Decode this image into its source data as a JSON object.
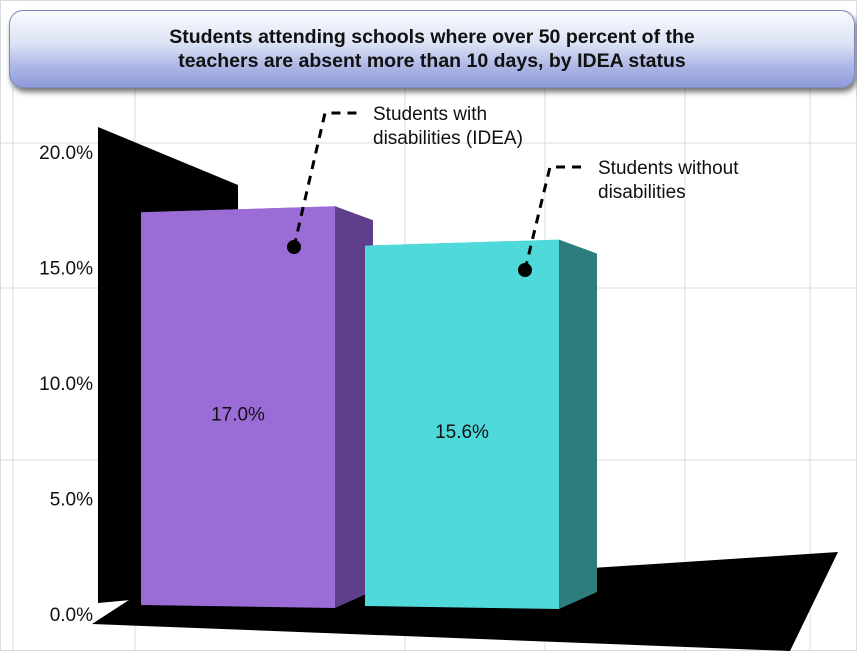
{
  "chart_data": {
    "type": "bar",
    "title": "Students attending schools where over 50 percent of the\nteachers are absent more than 10 days, by IDEA status",
    "categories": [
      "Students with disabilities (IDEA)",
      "Students without disabilities"
    ],
    "values": [
      17.0,
      15.6
    ],
    "data_labels": [
      "17.0%",
      "15.6%"
    ],
    "annotations": [
      {
        "lines": [
          "Students with",
          "disabilities (IDEA)"
        ]
      },
      {
        "lines": [
          "Students without",
          "disabilities"
        ]
      }
    ],
    "y_ticks": [
      "0.0%",
      "5.0%",
      "10.0%",
      "15.0%",
      "20.0%"
    ],
    "y_tick_values": [
      0,
      5,
      10,
      15,
      20
    ],
    "ylim": [
      0,
      20
    ],
    "xlabel": "",
    "ylabel": "",
    "grid": true,
    "colors": {
      "bar_1_front": "#9b6bd6",
      "bar_1_side": "#5e3f8c",
      "bar_2_front": "#4fd9da",
      "bar_2_side": "#2e7d7e",
      "back_wall": "#000000",
      "floor": "#000000",
      "grid": "#d9dbe3"
    }
  }
}
